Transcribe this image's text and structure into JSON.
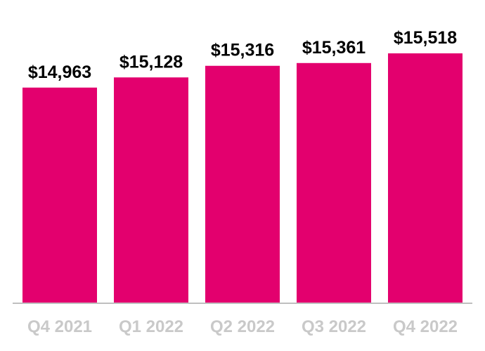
{
  "chart_data": {
    "type": "bar",
    "categories": [
      "Q4 2021",
      "Q1 2022",
      "Q2 2022",
      "Q3 2022",
      "Q4 2022"
    ],
    "values": [
      14963,
      15128,
      15316,
      15361,
      15518
    ],
    "data_labels": [
      "$14,963",
      "$15,128",
      "$15,316",
      "$15,361",
      "$15,518"
    ],
    "title": "",
    "xlabel": "",
    "ylabel": "",
    "ylim": [
      0,
      15518
    ],
    "grid": false,
    "legend": "none",
    "colors": {
      "bar": "#e3006e",
      "axis": "#bfbfbf",
      "category_text": "#c9c9c9",
      "value_text": "#000000"
    }
  }
}
